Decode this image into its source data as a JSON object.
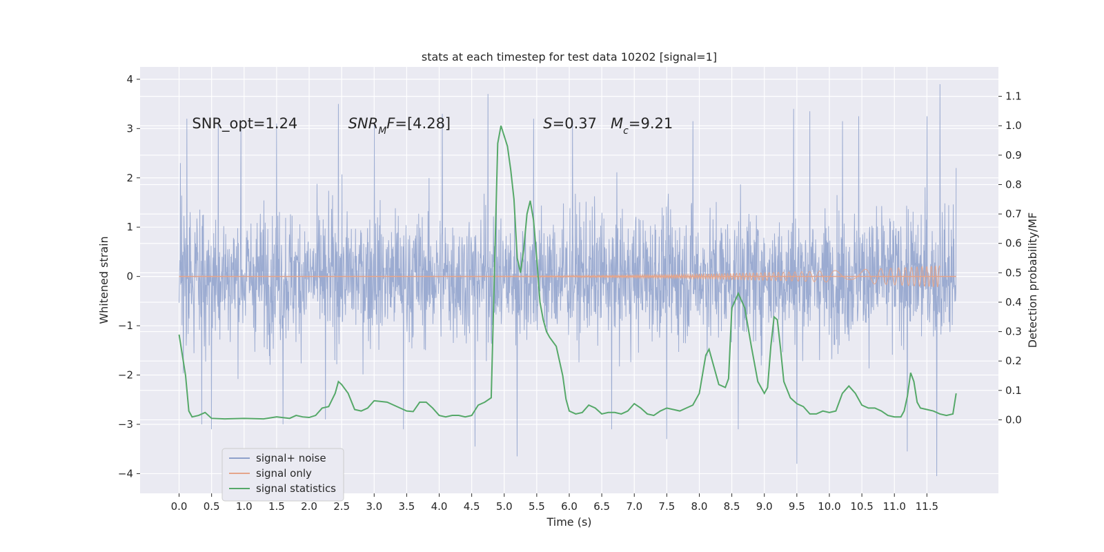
{
  "chart_data": {
    "type": "line",
    "title": "stats at each timestep for test data 10202 [signal=1]",
    "xlabel": "Time (s)",
    "ylabel": "Whitened strain",
    "ylabel_right": "Detection probability/MF",
    "xlim": [
      -0.6,
      12.6
    ],
    "ylim": [
      -4.4,
      4.25
    ],
    "ylim_right": [
      -0.25,
      1.2
    ],
    "grid": true,
    "legend_position": "lower-left",
    "xticks": [
      0.0,
      0.5,
      1.0,
      1.5,
      2.0,
      2.5,
      3.0,
      3.5,
      4.0,
      4.5,
      5.0,
      5.5,
      6.0,
      6.5,
      7.0,
      7.5,
      8.0,
      8.5,
      9.0,
      9.5,
      10.0,
      10.5,
      11.0,
      11.5
    ],
    "xtick_labels": [
      "0.0",
      "0.5",
      "1.0",
      "1.5",
      "2.0",
      "2.5",
      "3.0",
      "3.5",
      "4.0",
      "4.5",
      "5.0",
      "5.5",
      "6.0",
      "6.5",
      "7.0",
      "7.5",
      "8.0",
      "8.5",
      "9.0",
      "9.5",
      "10.0",
      "10.5",
      "11.0",
      "11.5"
    ],
    "yticks_left": [
      -4,
      -3,
      -2,
      -1,
      0,
      1,
      2,
      3,
      4
    ],
    "ytick_labels_left": [
      "−4",
      "−3",
      "−2",
      "−1",
      "0",
      "1",
      "2",
      "3",
      "4"
    ],
    "yticks_right": [
      0.0,
      0.1,
      0.2,
      0.3,
      0.4,
      0.5,
      0.6,
      0.7,
      0.8,
      0.9,
      1.0,
      1.1
    ],
    "ytick_labels_right": [
      "0.0",
      "0.1",
      "0.2",
      "0.3",
      "0.4",
      "0.5",
      "0.6",
      "0.7",
      "0.8",
      "0.9",
      "1.0",
      "1.1"
    ],
    "annotations": [
      {
        "x": 0.2,
        "y": 3.1,
        "segments": [
          {
            "text": "SNR_opt=1.24",
            "italic": false
          }
        ]
      },
      {
        "x": 2.6,
        "y": 3.1,
        "segments": [
          {
            "text": "SNR",
            "italic": true
          },
          {
            "text": "M",
            "italic": true,
            "sub": true
          },
          {
            "text": "F",
            "italic": true
          },
          {
            "text": "=[4.28]",
            "italic": false
          }
        ]
      },
      {
        "x": 5.6,
        "y": 3.1,
        "segments": [
          {
            "text": "S",
            "italic": true
          },
          {
            "text": "=0.37   ",
            "italic": false
          },
          {
            "text": "M",
            "italic": true
          },
          {
            "text": "c",
            "italic": true,
            "sub": true
          },
          {
            "text": "=9.21",
            "italic": false
          }
        ]
      }
    ],
    "series": [
      {
        "name": "signal+ noise",
        "axis": "left",
        "color": "#8da0cb",
        "t_start": 0.0,
        "t_end": 11.95,
        "typical_abs": 1.15,
        "peak_samples": [
          {
            "x": 0.02,
            "y": 2.3
          },
          {
            "x": 0.12,
            "y": 3.2
          },
          {
            "x": 0.35,
            "y": -3.0
          },
          {
            "x": 0.5,
            "y": -3.1
          },
          {
            "x": 0.6,
            "y": 3.1
          },
          {
            "x": 0.95,
            "y": 3.0
          },
          {
            "x": 1.5,
            "y": 3.1
          },
          {
            "x": 1.6,
            "y": -3.0
          },
          {
            "x": 2.25,
            "y": -2.9
          },
          {
            "x": 2.45,
            "y": 3.5
          },
          {
            "x": 3.0,
            "y": 3.1
          },
          {
            "x": 3.45,
            "y": -3.1
          },
          {
            "x": 4.05,
            "y": 3.3
          },
          {
            "x": 4.55,
            "y": -3.45
          },
          {
            "x": 4.75,
            "y": 3.7
          },
          {
            "x": 5.2,
            "y": -3.65
          },
          {
            "x": 5.45,
            "y": 3.2
          },
          {
            "x": 6.05,
            "y": 3.2
          },
          {
            "x": 6.65,
            "y": -3.1
          },
          {
            "x": 7.5,
            "y": -3.3
          },
          {
            "x": 7.9,
            "y": 3.15
          },
          {
            "x": 8.6,
            "y": -3.1
          },
          {
            "x": 9.45,
            "y": 3.4
          },
          {
            "x": 9.5,
            "y": -3.8
          },
          {
            "x": 9.7,
            "y": 3.35
          },
          {
            "x": 10.2,
            "y": 3.15
          },
          {
            "x": 10.45,
            "y": 3.25
          },
          {
            "x": 11.2,
            "y": -3.55
          },
          {
            "x": 11.5,
            "y": 3.25
          },
          {
            "x": 11.7,
            "y": 3.9
          },
          {
            "x": 11.65,
            "y": -4.05
          },
          {
            "x": 11.95,
            "y": 2.2
          }
        ]
      },
      {
        "name": "signal only",
        "axis": "left",
        "color": "#e5a58a",
        "t_start": 0.0,
        "t_end": 11.7,
        "start_amplitude": 0.0,
        "end_amplitude": 0.22
      },
      {
        "name": "signal statistics",
        "axis": "right",
        "color": "#55a868",
        "x": [
          0.0,
          0.05,
          0.1,
          0.15,
          0.2,
          0.3,
          0.4,
          0.5,
          0.7,
          1.0,
          1.3,
          1.5,
          1.7,
          1.8,
          1.9,
          2.0,
          2.1,
          2.2,
          2.3,
          2.4,
          2.45,
          2.5,
          2.6,
          2.7,
          2.8,
          2.9,
          3.0,
          3.2,
          3.4,
          3.5,
          3.6,
          3.7,
          3.8,
          3.9,
          4.0,
          4.1,
          4.2,
          4.3,
          4.4,
          4.5,
          4.6,
          4.7,
          4.8,
          4.9,
          4.95,
          5.05,
          5.1,
          5.15,
          5.2,
          5.25,
          5.3,
          5.35,
          5.4,
          5.45,
          5.5,
          5.55,
          5.6,
          5.65,
          5.7,
          5.8,
          5.9,
          5.95,
          6.0,
          6.1,
          6.2,
          6.3,
          6.4,
          6.5,
          6.6,
          6.7,
          6.8,
          6.9,
          7.0,
          7.1,
          7.2,
          7.3,
          7.4,
          7.5,
          7.6,
          7.7,
          7.8,
          7.9,
          8.0,
          8.1,
          8.15,
          8.2,
          8.3,
          8.4,
          8.45,
          8.5,
          8.6,
          8.7,
          8.8,
          8.9,
          9.0,
          9.05,
          9.1,
          9.15,
          9.2,
          9.25,
          9.3,
          9.4,
          9.5,
          9.6,
          9.7,
          9.8,
          9.9,
          10.0,
          10.1,
          10.15,
          10.2,
          10.3,
          10.4,
          10.5,
          10.6,
          10.7,
          10.8,
          10.9,
          11.0,
          11.1,
          11.15,
          11.2,
          11.25,
          11.3,
          11.35,
          11.4,
          11.5,
          11.6,
          11.7,
          11.8,
          11.9,
          11.95
        ],
        "y": [
          0.29,
          0.22,
          0.15,
          0.03,
          0.01,
          0.015,
          0.025,
          0.005,
          0.003,
          0.005,
          0.003,
          0.01,
          0.005,
          0.015,
          0.01,
          0.008,
          0.015,
          0.04,
          0.045,
          0.09,
          0.13,
          0.12,
          0.09,
          0.035,
          0.03,
          0.04,
          0.065,
          0.06,
          0.04,
          0.03,
          0.028,
          0.06,
          0.06,
          0.04,
          0.015,
          0.01,
          0.015,
          0.015,
          0.01,
          0.015,
          0.05,
          0.06,
          0.075,
          0.94,
          1.0,
          0.93,
          0.85,
          0.75,
          0.55,
          0.5,
          0.58,
          0.7,
          0.745,
          0.68,
          0.55,
          0.4,
          0.34,
          0.3,
          0.28,
          0.25,
          0.15,
          0.07,
          0.03,
          0.02,
          0.025,
          0.05,
          0.04,
          0.02,
          0.025,
          0.025,
          0.02,
          0.03,
          0.055,
          0.04,
          0.02,
          0.015,
          0.03,
          0.04,
          0.035,
          0.03,
          0.04,
          0.05,
          0.09,
          0.22,
          0.24,
          0.2,
          0.12,
          0.11,
          0.14,
          0.38,
          0.43,
          0.38,
          0.25,
          0.13,
          0.09,
          0.11,
          0.25,
          0.35,
          0.34,
          0.24,
          0.13,
          0.075,
          0.055,
          0.045,
          0.02,
          0.02,
          0.03,
          0.025,
          0.03,
          0.06,
          0.09,
          0.115,
          0.09,
          0.05,
          0.04,
          0.04,
          0.03,
          0.015,
          0.01,
          0.01,
          0.03,
          0.08,
          0.16,
          0.13,
          0.06,
          0.04,
          0.035,
          0.03,
          0.02,
          0.015,
          0.02,
          0.09
        ]
      }
    ]
  }
}
